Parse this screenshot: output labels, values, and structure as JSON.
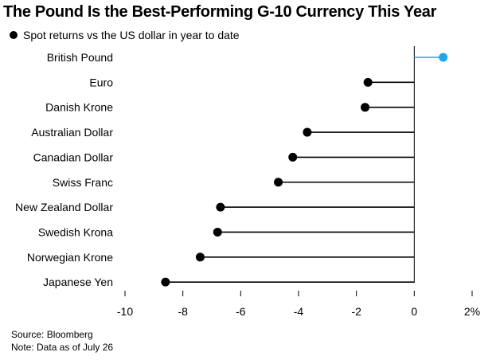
{
  "title": "The Pound Is the Best-Performing G-10 Currency This Year",
  "legend": {
    "label": "Spot returns vs the US dollar in year to date",
    "marker_color": "#000000"
  },
  "footer": {
    "source": "Source: Bloomberg",
    "note": "Note: Data as of July 26"
  },
  "colors": {
    "highlight": "#1ba8e8",
    "default": "#000000",
    "axis": "#000000"
  },
  "chart_data": {
    "type": "lollipop",
    "orientation": "horizontal",
    "categories": [
      "British Pound",
      "Euro",
      "Danish Krone",
      "Australian Dollar",
      "Canadian Dollar",
      "Swiss Franc",
      "New Zealand Dollar",
      "Swedish Krona",
      "Norwegian Krone",
      "Japanese Yen"
    ],
    "values": [
      1.0,
      -1.6,
      -1.7,
      -3.7,
      -4.2,
      -4.7,
      -6.7,
      -6.8,
      -7.4,
      -8.6
    ],
    "highlight_index": 0,
    "xlim": [
      -10,
      2
    ],
    "xticks": [
      -10,
      -8,
      -6,
      -4,
      -2,
      0,
      2
    ],
    "xtick_labels": [
      "-10",
      "-8",
      "-6",
      "-4",
      "-2",
      "0",
      "2%"
    ],
    "grid": false
  }
}
